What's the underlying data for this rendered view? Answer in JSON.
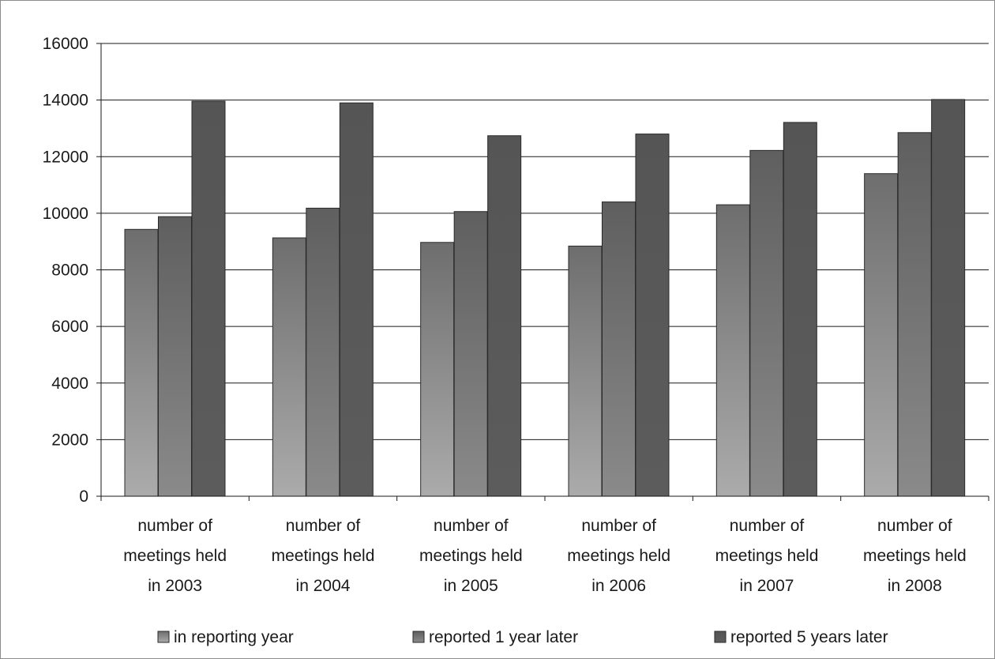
{
  "chart_data": {
    "type": "bar",
    "title": "",
    "xlabel": "",
    "ylabel": "",
    "ylim": [
      0,
      16000
    ],
    "yticks": [
      0,
      2000,
      4000,
      6000,
      8000,
      10000,
      12000,
      14000,
      16000
    ],
    "grid": true,
    "legend_position": "bottom",
    "categories": [
      [
        "number of",
        "meetings held",
        "in 2003"
      ],
      [
        "number of",
        "meetings held",
        "in 2004"
      ],
      [
        "number of",
        "meetings held",
        "in 2005"
      ],
      [
        "number of",
        "meetings held",
        "in 2006"
      ],
      [
        "number of",
        "meetings held",
        "in 2007"
      ],
      [
        "number of",
        "meetings held",
        "in 2008"
      ]
    ],
    "series": [
      {
        "name": "in reporting year",
        "color_top": "#6e6e6e",
        "color_bottom": "#ababab",
        "values": [
          9430,
          9130,
          8970,
          8840,
          10300,
          11400
        ]
      },
      {
        "name": "reported 1 year later",
        "color_top": "#5f5f5f",
        "color_bottom": "#8a8a8a",
        "values": [
          9880,
          10180,
          10060,
          10400,
          12220,
          12850
        ]
      },
      {
        "name": "reported 5 years later",
        "color_top": "#555555",
        "color_bottom": "#5c5c5c",
        "values": [
          13960,
          13900,
          12740,
          12800,
          13210,
          14020
        ]
      }
    ]
  }
}
